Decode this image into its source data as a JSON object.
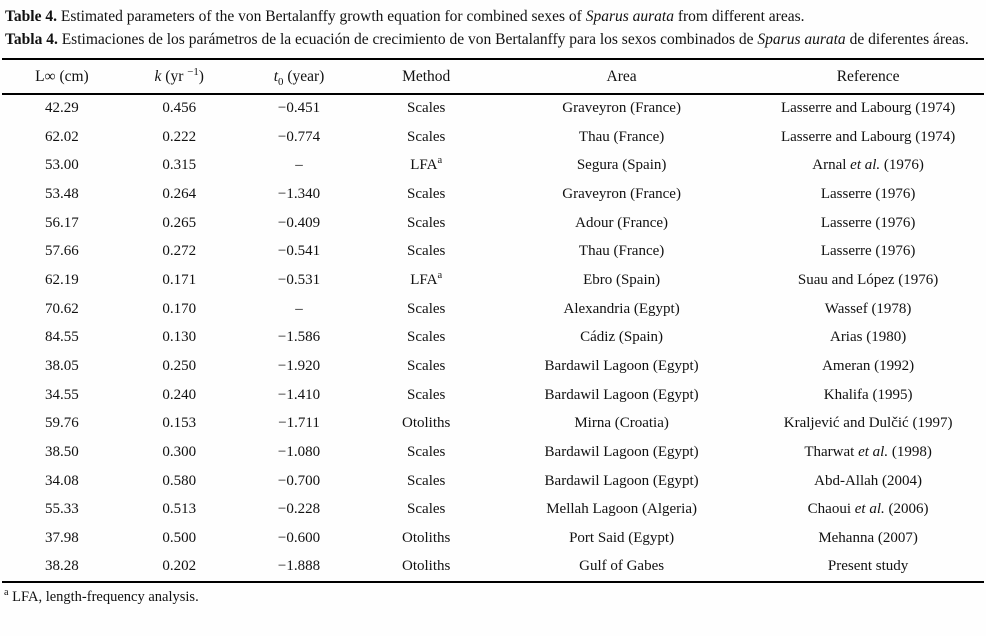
{
  "caption_en": [
    {
      "text": "Table 4.",
      "bold": true
    },
    {
      "text": " Estimated parameters of the von Bertalanffy growth equation for combined sexes of "
    },
    {
      "text": "Sparus aurata",
      "italic": true
    },
    {
      "text": " from different areas."
    }
  ],
  "caption_es": [
    {
      "text": "Tabla 4.",
      "bold": true
    },
    {
      "text": " Estimaciones de los parámetros de la ecuación de crecimiento de von Bertalanffy para los sexos combinados de "
    },
    {
      "text": "Sparus aurata",
      "italic": true
    },
    {
      "text": " de diferentes áreas."
    }
  ],
  "table": {
    "headers": [
      {
        "id": "linf",
        "segments": [
          {
            "text": "L∞ (cm)"
          }
        ]
      },
      {
        "id": "k",
        "segments": [
          {
            "text": "k",
            "italic": true
          },
          {
            "text": " (yr "
          },
          {
            "text": "−1",
            "sup": true
          },
          {
            "text": ")"
          }
        ]
      },
      {
        "id": "t0",
        "segments": [
          {
            "text": "t",
            "italic": true
          },
          {
            "text": "0",
            "sub": true
          },
          {
            "text": " (year)"
          }
        ]
      },
      {
        "id": "method",
        "segments": [
          {
            "text": "Method"
          }
        ]
      },
      {
        "id": "area",
        "segments": [
          {
            "text": "Area"
          }
        ]
      },
      {
        "id": "ref",
        "segments": [
          {
            "text": "Reference"
          }
        ]
      }
    ],
    "rows": [
      {
        "linf": "42.29",
        "k": "0.456",
        "t0": "−0.451",
        "method": "Scales",
        "method_note": "",
        "area": "Graveyron (France)",
        "reference": "Lasserre and Labourg (1974)"
      },
      {
        "linf": "62.02",
        "k": "0.222",
        "t0": "−0.774",
        "method": "Scales",
        "method_note": "",
        "area": "Thau (France)",
        "reference": "Lasserre and Labourg (1974)"
      },
      {
        "linf": "53.00",
        "k": "0.315",
        "t0": "–",
        "method": "LFA",
        "method_note": "a",
        "area": "Segura (Spain)",
        "reference": "Arnal et al. (1976)"
      },
      {
        "linf": "53.48",
        "k": "0.264",
        "t0": "−1.340",
        "method": "Scales",
        "method_note": "",
        "area": "Graveyron (France)",
        "reference": "Lasserre (1976)"
      },
      {
        "linf": "56.17",
        "k": "0.265",
        "t0": "−0.409",
        "method": "Scales",
        "method_note": "",
        "area": "Adour (France)",
        "reference": "Lasserre (1976)"
      },
      {
        "linf": "57.66",
        "k": "0.272",
        "t0": "−0.541",
        "method": "Scales",
        "method_note": "",
        "area": "Thau (France)",
        "reference": "Lasserre (1976)"
      },
      {
        "linf": "62.19",
        "k": "0.171",
        "t0": "−0.531",
        "method": "LFA",
        "method_note": "a",
        "area": "Ebro (Spain)",
        "reference": "Suau and López (1976)"
      },
      {
        "linf": "70.62",
        "k": "0.170",
        "t0": "–",
        "method": "Scales",
        "method_note": "",
        "area": "Alexandria (Egypt)",
        "reference": "Wassef (1978)"
      },
      {
        "linf": "84.55",
        "k": "0.130",
        "t0": "−1.586",
        "method": "Scales",
        "method_note": "",
        "area": "Cádiz (Spain)",
        "reference": "Arias (1980)"
      },
      {
        "linf": "38.05",
        "k": "0.250",
        "t0": "−1.920",
        "method": "Scales",
        "method_note": "",
        "area": "Bardawil Lagoon (Egypt)",
        "reference": "Ameran (1992)"
      },
      {
        "linf": "34.55",
        "k": "0.240",
        "t0": "−1.410",
        "method": "Scales",
        "method_note": "",
        "area": "Bardawil Lagoon (Egypt)",
        "reference": "Khalifa (1995)"
      },
      {
        "linf": "59.76",
        "k": "0.153",
        "t0": "−1.711",
        "method": "Otoliths",
        "method_note": "",
        "area": "Mirna (Croatia)",
        "reference": "Kraljević and Dulčić (1997)"
      },
      {
        "linf": "38.50",
        "k": "0.300",
        "t0": "−1.080",
        "method": "Scales",
        "method_note": "",
        "area": "Bardawil Lagoon (Egypt)",
        "reference": "Tharwat et al. (1998)"
      },
      {
        "linf": "34.08",
        "k": "0.580",
        "t0": "−0.700",
        "method": "Scales",
        "method_note": "",
        "area": "Bardawil Lagoon (Egypt)",
        "reference": "Abd-Allah (2004)"
      },
      {
        "linf": "55.33",
        "k": "0.513",
        "t0": "−0.228",
        "method": "Scales",
        "method_note": "",
        "area": "Mellah Lagoon (Algeria)",
        "reference": "Chaoui et al. (2006)"
      },
      {
        "linf": "37.98",
        "k": "0.500",
        "t0": "−0.600",
        "method": "Otoliths",
        "method_note": "",
        "area": "Port Said (Egypt)",
        "reference": "Mehanna (2007)"
      },
      {
        "linf": "38.28",
        "k": "0.202",
        "t0": "−1.888",
        "method": "Otoliths",
        "method_note": "",
        "area": "Gulf of Gabes",
        "reference": "Present study"
      }
    ]
  },
  "footnote": [
    {
      "text": "a",
      "sup": true
    },
    {
      "text": " LFA, length-frequency analysis."
    }
  ]
}
